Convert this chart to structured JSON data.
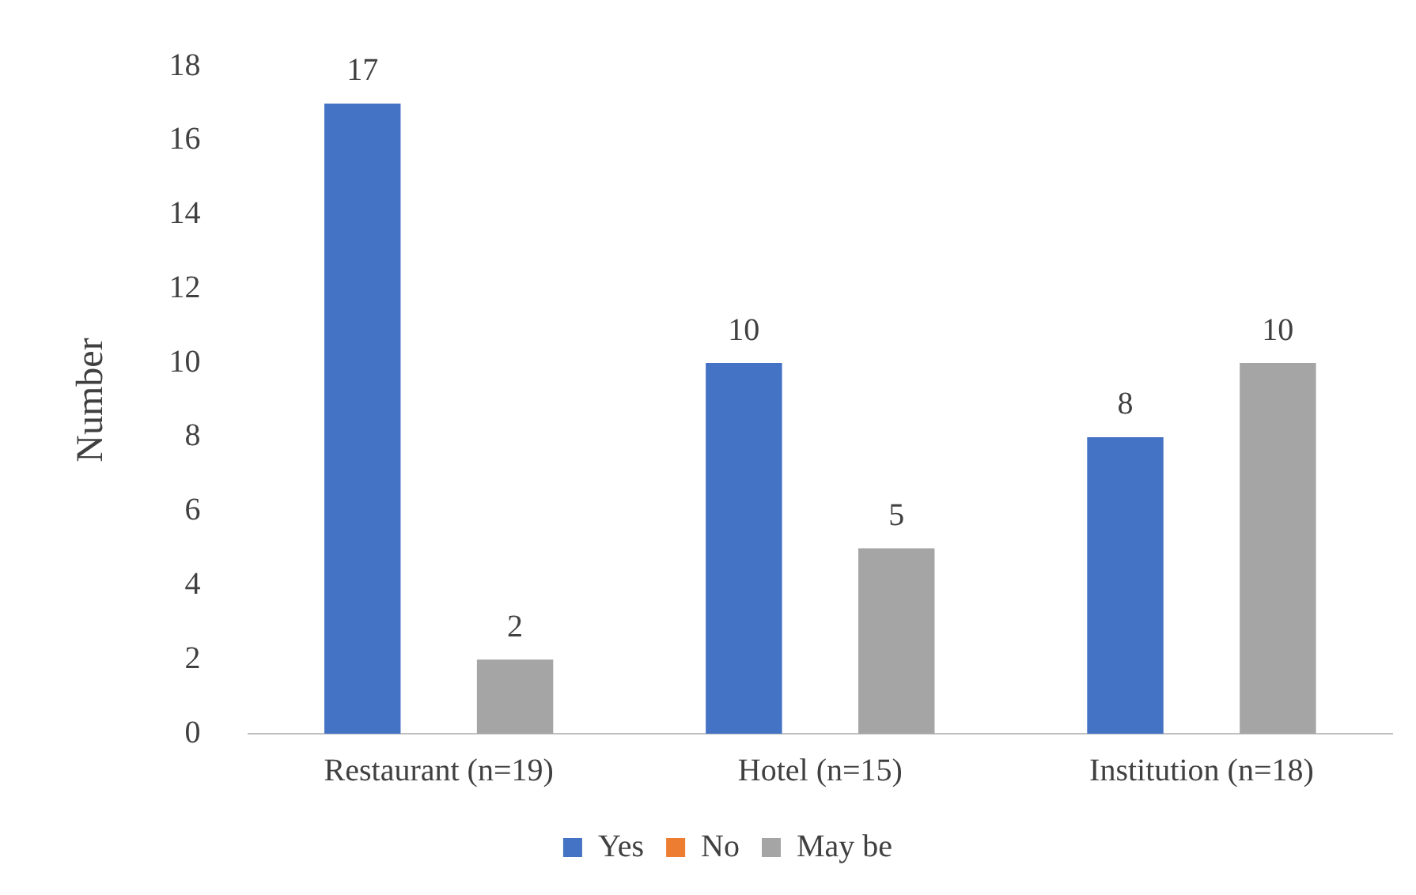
{
  "chart_data": {
    "type": "bar",
    "ylabel": "Number",
    "categories": [
      "Restaurant (n=19)",
      "Hotel (n=15)",
      "Institution (n=18)"
    ],
    "series": [
      {
        "name": "Yes",
        "color": "#4472c4",
        "values": [
          17,
          10,
          8
        ],
        "value_labels": [
          "17",
          "10",
          "8"
        ]
      },
      {
        "name": "No",
        "color": "#ed7d31",
        "values": [
          0,
          0,
          0
        ],
        "value_labels": [
          null,
          null,
          null
        ]
      },
      {
        "name": "May be",
        "color": "#a5a5a5",
        "values": [
          2,
          5,
          10
        ],
        "value_labels": [
          "2",
          "5",
          "10"
        ]
      }
    ],
    "ylim": [
      0,
      18
    ],
    "yticks": [
      0,
      2,
      4,
      6,
      8,
      10,
      12,
      14,
      16,
      18
    ],
    "grid": false,
    "legend": "bottom"
  }
}
